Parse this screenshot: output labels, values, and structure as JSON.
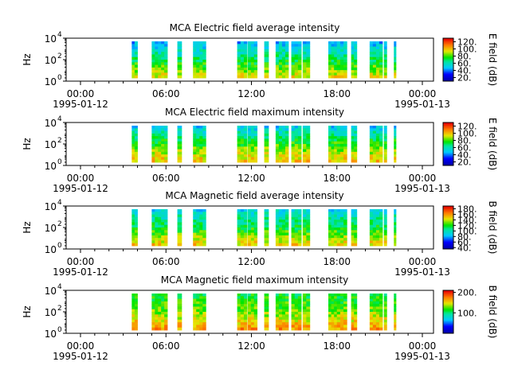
{
  "chart_data": [
    {
      "type": "heatmap",
      "title": "MCA  Electric field average intensity",
      "ylabel": "Hz",
      "ylim_exponents": [
        0,
        4
      ],
      "yticks": [
        {
          "base": "10",
          "exp": "0"
        },
        {
          "base": "10",
          "exp": "2"
        },
        {
          "base": "10",
          "exp": "4"
        }
      ],
      "xticks": [
        "00:00",
        "06:00",
        "12:00",
        "18:00",
        "00:00"
      ],
      "xdates": [
        "1995-01-12",
        "1995-01-13"
      ],
      "colorbar_label": "E field (dB)",
      "colorbar_ticks": [
        "20.",
        "40.",
        "60.",
        "80.",
        "100.",
        "120."
      ],
      "colorbar_range": [
        10,
        130
      ],
      "colorscale": "rainbow",
      "data_intervals_hours": [
        [
          3.6,
          4.0
        ],
        [
          5.0,
          6.1
        ],
        [
          6.8,
          7.1
        ],
        [
          7.9,
          8.8
        ],
        [
          11.0,
          11.7
        ],
        [
          11.75,
          12.4
        ],
        [
          12.9,
          13.2
        ],
        [
          13.7,
          14.6
        ],
        [
          14.8,
          15.5
        ],
        [
          15.6,
          16.1
        ],
        [
          17.4,
          18.0
        ],
        [
          18.0,
          18.7
        ],
        [
          19.0,
          19.4
        ],
        [
          20.3,
          21.2
        ],
        [
          21.3,
          21.5
        ],
        [
          22.0,
          22.15
        ]
      ],
      "typical_levels": {
        "low_freq": 95,
        "mid_freq": 70,
        "high_freq": 45
      }
    },
    {
      "type": "heatmap",
      "title": "MCA  Electric field maximum intensity",
      "ylabel": "Hz",
      "ylim_exponents": [
        0,
        4
      ],
      "yticks": [
        {
          "base": "10",
          "exp": "0"
        },
        {
          "base": "10",
          "exp": "2"
        },
        {
          "base": "10",
          "exp": "4"
        }
      ],
      "xticks": [
        "00:00",
        "06:00",
        "12:00",
        "18:00",
        "00:00"
      ],
      "xdates": [
        "1995-01-12",
        "1995-01-13"
      ],
      "colorbar_label": "E field (dB)",
      "colorbar_ticks": [
        "20.",
        "40.",
        "60.",
        "80.",
        "100.",
        "120."
      ],
      "colorbar_range": [
        10,
        130
      ],
      "colorscale": "rainbow",
      "data_intervals_hours": [
        [
          3.6,
          4.0
        ],
        [
          5.0,
          6.1
        ],
        [
          6.8,
          7.1
        ],
        [
          7.9,
          8.8
        ],
        [
          11.0,
          11.7
        ],
        [
          11.75,
          12.4
        ],
        [
          12.9,
          13.2
        ],
        [
          13.7,
          14.6
        ],
        [
          14.8,
          15.5
        ],
        [
          15.6,
          16.1
        ],
        [
          17.4,
          18.0
        ],
        [
          18.0,
          18.7
        ],
        [
          19.0,
          19.4
        ],
        [
          20.3,
          21.2
        ],
        [
          21.3,
          21.5
        ],
        [
          22.0,
          22.15
        ]
      ],
      "typical_levels": {
        "low_freq": 100,
        "mid_freq": 78,
        "high_freq": 50
      }
    },
    {
      "type": "heatmap",
      "title": "MCA  Magnetic field average intensity",
      "ylabel": "Hz",
      "ylim_exponents": [
        0,
        4
      ],
      "yticks": [
        {
          "base": "10",
          "exp": "0"
        },
        {
          "base": "10",
          "exp": "2"
        },
        {
          "base": "10",
          "exp": "4"
        }
      ],
      "xticks": [
        "00:00",
        "06:00",
        "12:00",
        "18:00",
        "00:00"
      ],
      "xdates": [
        "1995-01-12",
        "1995-01-13"
      ],
      "colorbar_label": "B field (dB)",
      "colorbar_ticks": [
        "40.",
        "60.",
        "80.",
        "100.",
        "120.",
        "140.",
        "160.",
        "180."
      ],
      "colorbar_range": [
        35,
        190
      ],
      "colorscale": "rainbow",
      "data_intervals_hours": [
        [
          3.6,
          4.0
        ],
        [
          5.0,
          6.1
        ],
        [
          6.8,
          7.1
        ],
        [
          7.9,
          8.8
        ],
        [
          11.0,
          11.7
        ],
        [
          11.75,
          12.4
        ],
        [
          12.9,
          13.2
        ],
        [
          13.7,
          14.6
        ],
        [
          14.8,
          15.5
        ],
        [
          15.6,
          16.1
        ],
        [
          17.4,
          18.0
        ],
        [
          18.0,
          18.7
        ],
        [
          19.0,
          19.4
        ],
        [
          20.3,
          21.2
        ],
        [
          21.3,
          21.5
        ],
        [
          22.0,
          22.15
        ]
      ],
      "typical_levels": {
        "low_freq": 150,
        "mid_freq": 115,
        "high_freq": 90
      }
    },
    {
      "type": "heatmap",
      "title": "MCA  Magnetic field maximum intensity",
      "ylabel": "Hz",
      "ylim_exponents": [
        0,
        4
      ],
      "yticks": [
        {
          "base": "10",
          "exp": "0"
        },
        {
          "base": "10",
          "exp": "2"
        },
        {
          "base": "10",
          "exp": "4"
        }
      ],
      "xticks": [
        "00:00",
        "06:00",
        "12:00",
        "18:00",
        "00:00"
      ],
      "xdates": [
        "1995-01-12",
        "1995-01-13"
      ],
      "colorbar_label": "B field (dB)",
      "colorbar_ticks": [
        "100.",
        "200."
      ],
      "colorbar_range": [
        0,
        210
      ],
      "colorscale": "rainbow",
      "data_intervals_hours": [
        [
          3.6,
          4.0
        ],
        [
          5.0,
          6.1
        ],
        [
          6.8,
          7.1
        ],
        [
          7.9,
          8.8
        ],
        [
          11.0,
          11.7
        ],
        [
          11.75,
          12.4
        ],
        [
          12.9,
          13.2
        ],
        [
          13.7,
          14.6
        ],
        [
          14.8,
          15.5
        ],
        [
          15.6,
          16.1
        ],
        [
          17.4,
          18.0
        ],
        [
          18.0,
          18.7
        ],
        [
          19.0,
          19.4
        ],
        [
          20.3,
          21.2
        ],
        [
          21.3,
          21.5
        ],
        [
          22.0,
          22.15
        ]
      ],
      "typical_levels": {
        "low_freq": 170,
        "mid_freq": 130,
        "high_freq": 110
      }
    }
  ]
}
